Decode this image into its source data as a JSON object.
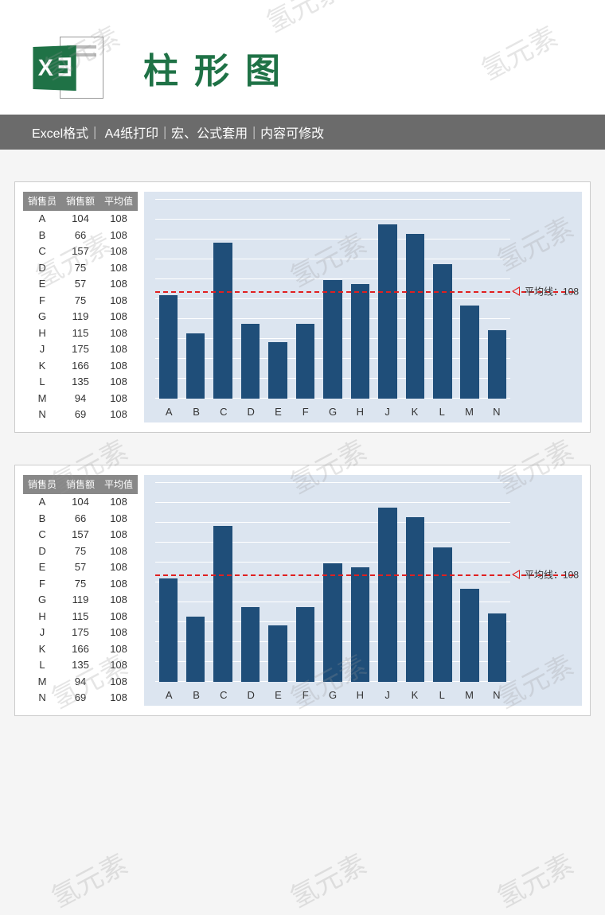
{
  "header": {
    "icon_text": "X ∃",
    "title": "柱形图",
    "subtitle": "Excel格式｜ A4纸打印｜宏、公式套用｜内容可修改"
  },
  "watermark_text": "氢元素",
  "table": {
    "columns": [
      "销售员",
      "销售额",
      "平均值"
    ],
    "rows": [
      [
        "A",
        104,
        108
      ],
      [
        "B",
        66,
        108
      ],
      [
        "C",
        157,
        108
      ],
      [
        "D",
        75,
        108
      ],
      [
        "E",
        57,
        108
      ],
      [
        "F",
        75,
        108
      ],
      [
        "G",
        119,
        108
      ],
      [
        "H",
        115,
        108
      ],
      [
        "J",
        175,
        108
      ],
      [
        "K",
        166,
        108
      ],
      [
        "L",
        135,
        108
      ],
      [
        "M",
        94,
        108
      ],
      [
        "N",
        69,
        108
      ]
    ]
  },
  "chart": {
    "type": "bar",
    "categories": [
      "A",
      "B",
      "C",
      "D",
      "E",
      "F",
      "G",
      "H",
      "J",
      "K",
      "L",
      "M",
      "N"
    ],
    "values": [
      104,
      66,
      157,
      75,
      57,
      75,
      119,
      115,
      175,
      166,
      135,
      94,
      69
    ],
    "bar_color": "#1f4e79",
    "background_color": "#dce5f0",
    "grid_color": "#ffffff",
    "ylim": [
      0,
      200
    ],
    "ytick_step": 20,
    "xaxis_fontsize": 13,
    "average": {
      "value": 108,
      "label_prefix": "平均线：",
      "line_color": "#e02020",
      "line_style": "dashed"
    }
  }
}
